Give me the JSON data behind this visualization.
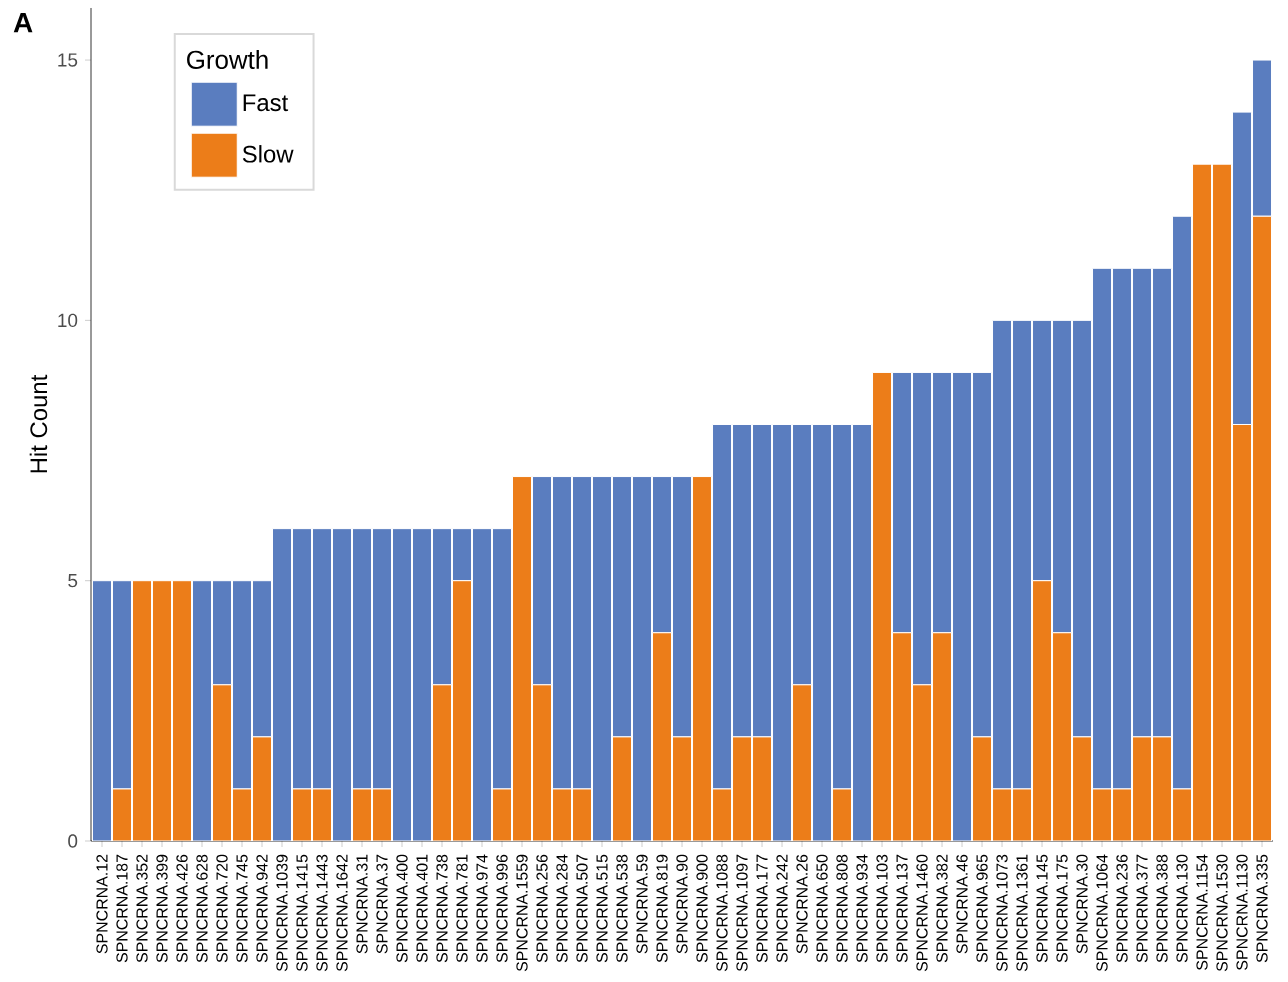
{
  "chart_data": {
    "type": "bar",
    "stacked": true,
    "ylabel": "Hit Count",
    "legend_title": "Growth",
    "legend": "top left",
    "grid": false,
    "annotations": [
      "A"
    ],
    "categories": [
      "SPNCRNA.12",
      "SPNCRNA.187",
      "SPNCRNA.352",
      "SPNCRNA.399",
      "SPNCRNA.426",
      "SPNCRNA.628",
      "SPNCRNA.720",
      "SPNCRNA.745",
      "SPNCRNA.942",
      "SPNCRNA.1039",
      "SPNCRNA.1415",
      "SPNCRNA.1443",
      "SPNCRNA.1642",
      "SPNCRNA.31",
      "SPNCRNA.37",
      "SPNCRNA.400",
      "SPNCRNA.401",
      "SPNCRNA.738",
      "SPNCRNA.781",
      "SPNCRNA.974",
      "SPNCRNA.996",
      "SPNCRNA.1559",
      "SPNCRNA.256",
      "SPNCRNA.284",
      "SPNCRNA.507",
      "SPNCRNA.515",
      "SPNCRNA.538",
      "SPNCRNA.59",
      "SPNCRNA.819",
      "SPNCRNA.90",
      "SPNCRNA.900",
      "SPNCRNA.1088",
      "SPNCRNA.1097",
      "SPNCRNA.177",
      "SPNCRNA.242",
      "SPNCRNA.26",
      "SPNCRNA.650",
      "SPNCRNA.808",
      "SPNCRNA.934",
      "SPNCRNA.103",
      "SPNCRNA.137",
      "SPNCRNA.1460",
      "SPNCRNA.382",
      "SPNCRNA.46",
      "SPNCRNA.965",
      "SPNCRNA.1073",
      "SPNCRNA.1361",
      "SPNCRNA.145",
      "SPNCRNA.175",
      "SPNCRNA.30",
      "SPNCRNA.1064",
      "SPNCRNA.236",
      "SPNCRNA.377",
      "SPNCRNA.388",
      "SPNCRNA.130",
      "SPNCRNA.1154",
      "SPNCRNA.1530",
      "SPNCRNA.1130",
      "SPNCRNA.335"
    ],
    "series": [
      {
        "name": "Slow",
        "color": "#ec7d19",
        "values": [
          0,
          1,
          5,
          5,
          5,
          0,
          3,
          1,
          2,
          0,
          1,
          1,
          0,
          1,
          1,
          0,
          0,
          3,
          5,
          0,
          1,
          7,
          3,
          1,
          1,
          0,
          2,
          0,
          4,
          2,
          7,
          1,
          2,
          2,
          0,
          3,
          0,
          1,
          0,
          9,
          4,
          3,
          4,
          0,
          2,
          1,
          1,
          5,
          4,
          2,
          1,
          1,
          2,
          2,
          1,
          13,
          13,
          8,
          12
        ]
      },
      {
        "name": "Fast",
        "color": "#5a7dbf",
        "values": [
          5,
          4,
          0,
          0,
          0,
          5,
          2,
          4,
          3,
          6,
          5,
          5,
          6,
          5,
          5,
          6,
          6,
          3,
          1,
          6,
          5,
          0,
          4,
          6,
          6,
          7,
          5,
          7,
          3,
          5,
          0,
          7,
          6,
          6,
          8,
          5,
          8,
          7,
          8,
          0,
          5,
          6,
          5,
          9,
          7,
          9,
          9,
          5,
          6,
          8,
          10,
          10,
          9,
          9,
          11,
          0,
          0,
          6,
          3
        ]
      }
    ],
    "ylim": [
      0,
      16
    ],
    "yticks": [
      0,
      5,
      10,
      15
    ]
  }
}
